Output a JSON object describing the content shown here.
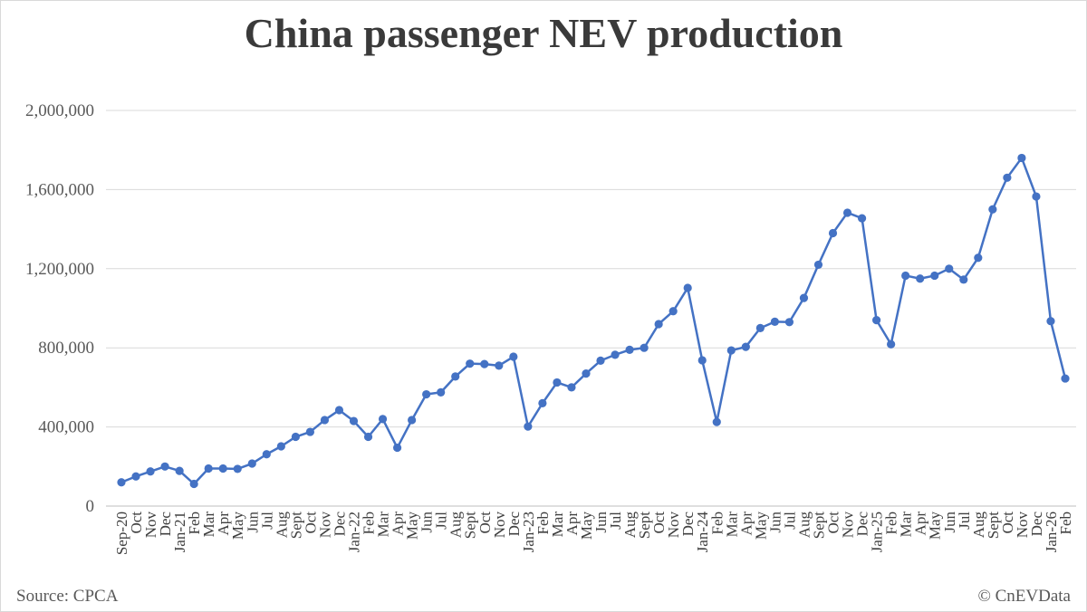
{
  "chart_data": {
    "type": "line",
    "title": "China passenger NEV production",
    "xlabel": "",
    "ylabel": "",
    "ylim": [
      0,
      2000000
    ],
    "yticks": [
      0,
      400000,
      800000,
      1200000,
      1600000,
      2000000
    ],
    "ytick_labels": [
      "0",
      "400,000",
      "800,000",
      "1,200,000",
      "1,600,000",
      "2,000,000"
    ],
    "grid": "horizontal",
    "legend": "none",
    "line_color": "#4472c4",
    "categories": [
      "Sep-20",
      "Oct",
      "Nov",
      "Dec",
      "Jan-21",
      "Feb",
      "Mar",
      "Apr",
      "May",
      "Jun",
      "Jul",
      "Aug",
      "Sept",
      "Oct",
      "Nov",
      "Dec",
      "Jan-22",
      "Feb",
      "Mar",
      "Apr",
      "May",
      "Jun",
      "Jul",
      "Aug",
      "Sept",
      "Oct",
      "Nov",
      "Dec",
      "Jan-23",
      "Feb",
      "Mar",
      "Apr",
      "May",
      "Jun",
      "Jul",
      "Aug",
      "Sept",
      "Oct",
      "Nov",
      "Dec",
      "Jan-24",
      "Feb",
      "Mar",
      "Apr",
      "May",
      "Jun",
      "Jul",
      "Aug",
      "Sept",
      "Oct",
      "Nov",
      "Dec",
      "Jan-25",
      "Feb",
      "Mar",
      "Apr",
      "May",
      "Jun",
      "Jul",
      "Aug",
      "Sept",
      "Oct",
      "Nov",
      "Dec",
      "Jan-26",
      "Feb"
    ],
    "series": [
      {
        "values": [
          120000,
          150000,
          175000,
          200000,
          178000,
          112000,
          190000,
          190000,
          188000,
          215000,
          262000,
          302000,
          350000,
          375000,
          435000,
          485000,
          430000,
          350000,
          440000,
          295000,
          435000,
          565000,
          575000,
          655000,
          720000,
          718000,
          710000,
          755000,
          402000,
          520000,
          625000,
          600000,
          670000,
          735000,
          765000,
          790000,
          800000,
          920000,
          985000,
          1103000,
          737000,
          425000,
          787000,
          805000,
          900000,
          932000,
          930000,
          1052000,
          1220000,
          1380000,
          1483000,
          1455000,
          940000,
          818000,
          1165000,
          1150000,
          1165000,
          1200000,
          1145000,
          1255000,
          1500000,
          1660000,
          1760000,
          1565000,
          935000,
          645000
        ]
      }
    ]
  },
  "footer": {
    "source": "Source: CPCA",
    "credit": "© CnEVData"
  }
}
